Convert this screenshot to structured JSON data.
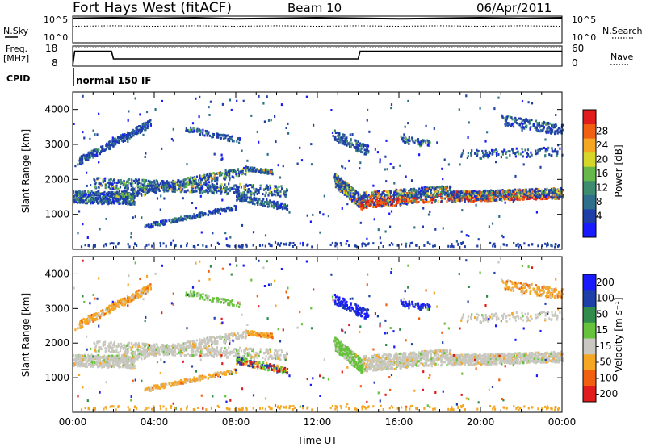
{
  "header": {
    "station": "Fort Hays West (fitACF)",
    "beam": "Beam 10",
    "date": "06/Apr/2011"
  },
  "left_labels": {
    "nsky": "N.Sky",
    "nsky_ticks": [
      "10^5",
      "10^0"
    ],
    "freq_line1": "Freq.",
    "freq_line2": "[MHz]",
    "freq_ticks": [
      "18",
      "8"
    ],
    "cpid": "CPID",
    "cpid_value": "normal 150 IF"
  },
  "right_labels": {
    "nsearch": "N.Search",
    "nsearch_ticks": [
      "10^5",
      "10^0"
    ],
    "nave": "Nave",
    "nave_ticks": [
      "60",
      "0"
    ]
  },
  "colors": {
    "power": [
      "#1a1aff",
      "#1f3fa8",
      "#2f6f8c",
      "#3d8c6f",
      "#66b84a",
      "#d6d62a",
      "#f5a623",
      "#f06010",
      "#e21c1c"
    ],
    "velocity": [
      "#1a1aff",
      "#1f3fa8",
      "#2f8c4a",
      "#66c23a",
      "#c8c8c0",
      "#f5a623",
      "#f06010",
      "#e21c1c"
    ]
  },
  "chart_data": [
    {
      "type": "line",
      "title": "N.Sky / N.Search",
      "x": [
        0,
        2,
        4,
        6,
        8,
        10,
        12,
        14,
        16,
        18,
        20,
        22,
        24
      ],
      "series": [
        {
          "name": "N.Sky",
          "values": [
            4.6,
            4.7,
            4.6,
            4.7,
            4.5,
            4.6,
            4.7,
            4.6,
            4.5,
            4.6,
            4.7,
            4.6,
            4.7
          ]
        },
        {
          "name": "N.Search",
          "values": [
            3.1,
            3.2,
            3.1,
            3.2,
            3.1,
            3.2,
            3.1,
            3.2,
            3.1,
            3.2,
            3.1,
            3.2,
            3.1
          ]
        }
      ],
      "ylim": [
        0,
        5
      ]
    },
    {
      "type": "line",
      "title": "Freq. / Nave",
      "x": [
        0,
        0.1,
        1.9,
        2.0,
        14.0,
        14.1,
        24
      ],
      "series": [
        {
          "name": "Freq.",
          "values": [
            0,
            15.4,
            15.4,
            11.6,
            11.6,
            15.4,
            15.4
          ]
        },
        {
          "name": "Nave",
          "values": [
            55,
            55,
            55,
            55,
            55,
            55,
            55
          ]
        }
      ],
      "ylim": [
        8,
        18
      ]
    },
    {
      "type": "scatter",
      "title": "Power",
      "xlabel": "",
      "ylabel": "Slant Range [km]",
      "xlim": [
        0,
        24
      ],
      "ylim": [
        0,
        4500
      ],
      "yticks": [
        "1000",
        "2000",
        "3000",
        "4000"
      ],
      "colorbar_label": "Power [dB]",
      "colorbar_ticks": [
        "4",
        "8",
        "12",
        "16",
        "20",
        "24",
        "28"
      ]
    },
    {
      "type": "scatter",
      "title": "Velocity",
      "xlabel": "Time UT",
      "ylabel": "Slant Range [km]",
      "xlim": [
        0,
        24
      ],
      "ylim": [
        0,
        4500
      ],
      "xticks": [
        "00:00",
        "04:00",
        "08:00",
        "12:00",
        "16:00",
        "20:00",
        "00:00"
      ],
      "yticks": [
        "1000",
        "2000",
        "3000",
        "4000"
      ],
      "colorbar_label": "Velocity [m s⁻¹]",
      "colorbar_ticks": [
        "200",
        "100",
        "50",
        "15",
        "-15",
        "-50",
        "-100",
        "-200"
      ]
    }
  ]
}
